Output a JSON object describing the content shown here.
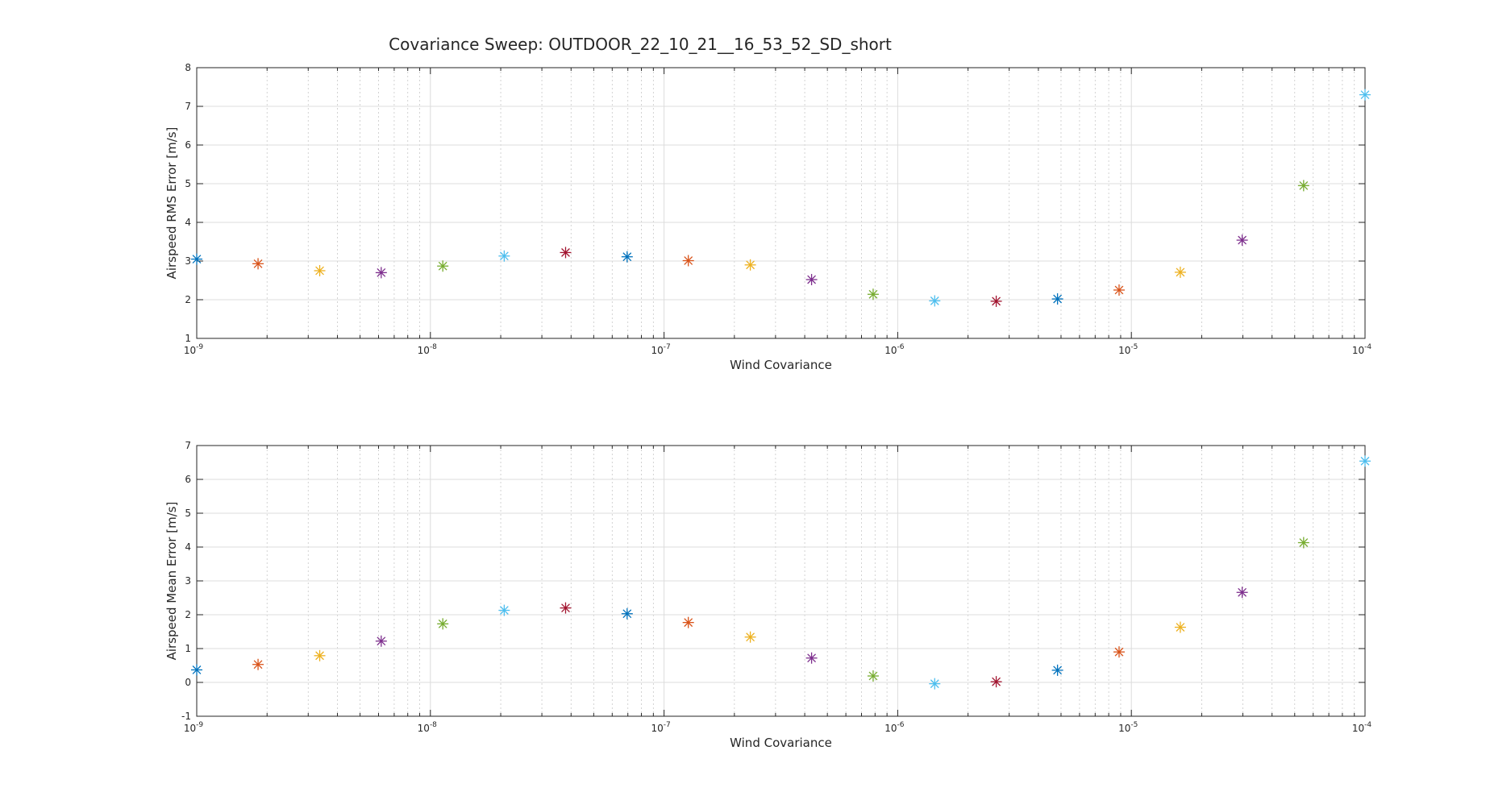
{
  "figure_title": "Covariance Sweep: OUTDOOR_22_10_21__16_53_52_SD_short",
  "colors": [
    "#0072BD",
    "#D95319",
    "#EDB120",
    "#7E2F8E",
    "#77AC30",
    "#4DBEEE",
    "#A2142F"
  ],
  "marker": "asterisk",
  "chart_data": [
    {
      "type": "scatter",
      "title": "Covariance Sweep: OUTDOOR_22_10_21__16_53_52_SD_short",
      "xlabel": "Wind Covariance",
      "ylabel": "Airspeed RMS Error [m/s]",
      "xscale": "log",
      "xlim": [
        1e-09,
        0.0001
      ],
      "ylim": [
        1,
        8
      ],
      "grid": true,
      "minor_grid": true,
      "xticks": [
        {
          "base": "10",
          "exp": "-9"
        },
        {
          "base": "10",
          "exp": "-8"
        },
        {
          "base": "10",
          "exp": "-7"
        },
        {
          "base": "10",
          "exp": "-6"
        },
        {
          "base": "10",
          "exp": "-5"
        },
        {
          "base": "10",
          "exp": "-4"
        }
      ],
      "yticks": [
        "1",
        "2",
        "3",
        "4",
        "5",
        "6",
        "7",
        "8"
      ],
      "x": [
        1e-09,
        1.83e-09,
        3.36e-09,
        6.16e-09,
        1.13e-08,
        2.07e-08,
        3.79e-08,
        6.95e-08,
        1.27e-07,
        2.34e-07,
        4.28e-07,
        7.85e-07,
        1.44e-06,
        2.64e-06,
        4.83e-06,
        8.86e-06,
        1.62e-05,
        2.98e-05,
        5.46e-05,
        0.0001
      ],
      "y": [
        3.05,
        2.93,
        2.75,
        2.7,
        2.87,
        3.13,
        3.22,
        3.11,
        3.01,
        2.9,
        2.52,
        2.14,
        1.97,
        1.96,
        2.02,
        2.25,
        2.71,
        3.54,
        4.95,
        7.3
      ]
    },
    {
      "type": "scatter",
      "xlabel": "Wind Covariance",
      "ylabel": "Airspeed Mean Error [m/s]",
      "xscale": "log",
      "xlim": [
        1e-09,
        0.0001
      ],
      "ylim": [
        -1,
        7
      ],
      "grid": true,
      "minor_grid": true,
      "xticks": [
        {
          "base": "10",
          "exp": "-9"
        },
        {
          "base": "10",
          "exp": "-8"
        },
        {
          "base": "10",
          "exp": "-7"
        },
        {
          "base": "10",
          "exp": "-6"
        },
        {
          "base": "10",
          "exp": "-5"
        },
        {
          "base": "10",
          "exp": "-4"
        }
      ],
      "yticks": [
        "-1",
        "0",
        "1",
        "2",
        "3",
        "4",
        "5",
        "6",
        "7"
      ],
      "x": [
        1e-09,
        1.83e-09,
        3.36e-09,
        6.16e-09,
        1.13e-08,
        2.07e-08,
        3.79e-08,
        6.95e-08,
        1.27e-07,
        2.34e-07,
        4.28e-07,
        7.85e-07,
        1.44e-06,
        2.64e-06,
        4.83e-06,
        8.86e-06,
        1.62e-05,
        2.98e-05,
        5.46e-05,
        0.0001
      ],
      "y": [
        0.37,
        0.53,
        0.79,
        1.22,
        1.73,
        2.13,
        2.2,
        2.03,
        1.77,
        1.34,
        0.72,
        0.19,
        -0.04,
        0.02,
        0.36,
        0.9,
        1.63,
        2.66,
        4.13,
        6.54
      ]
    }
  ]
}
